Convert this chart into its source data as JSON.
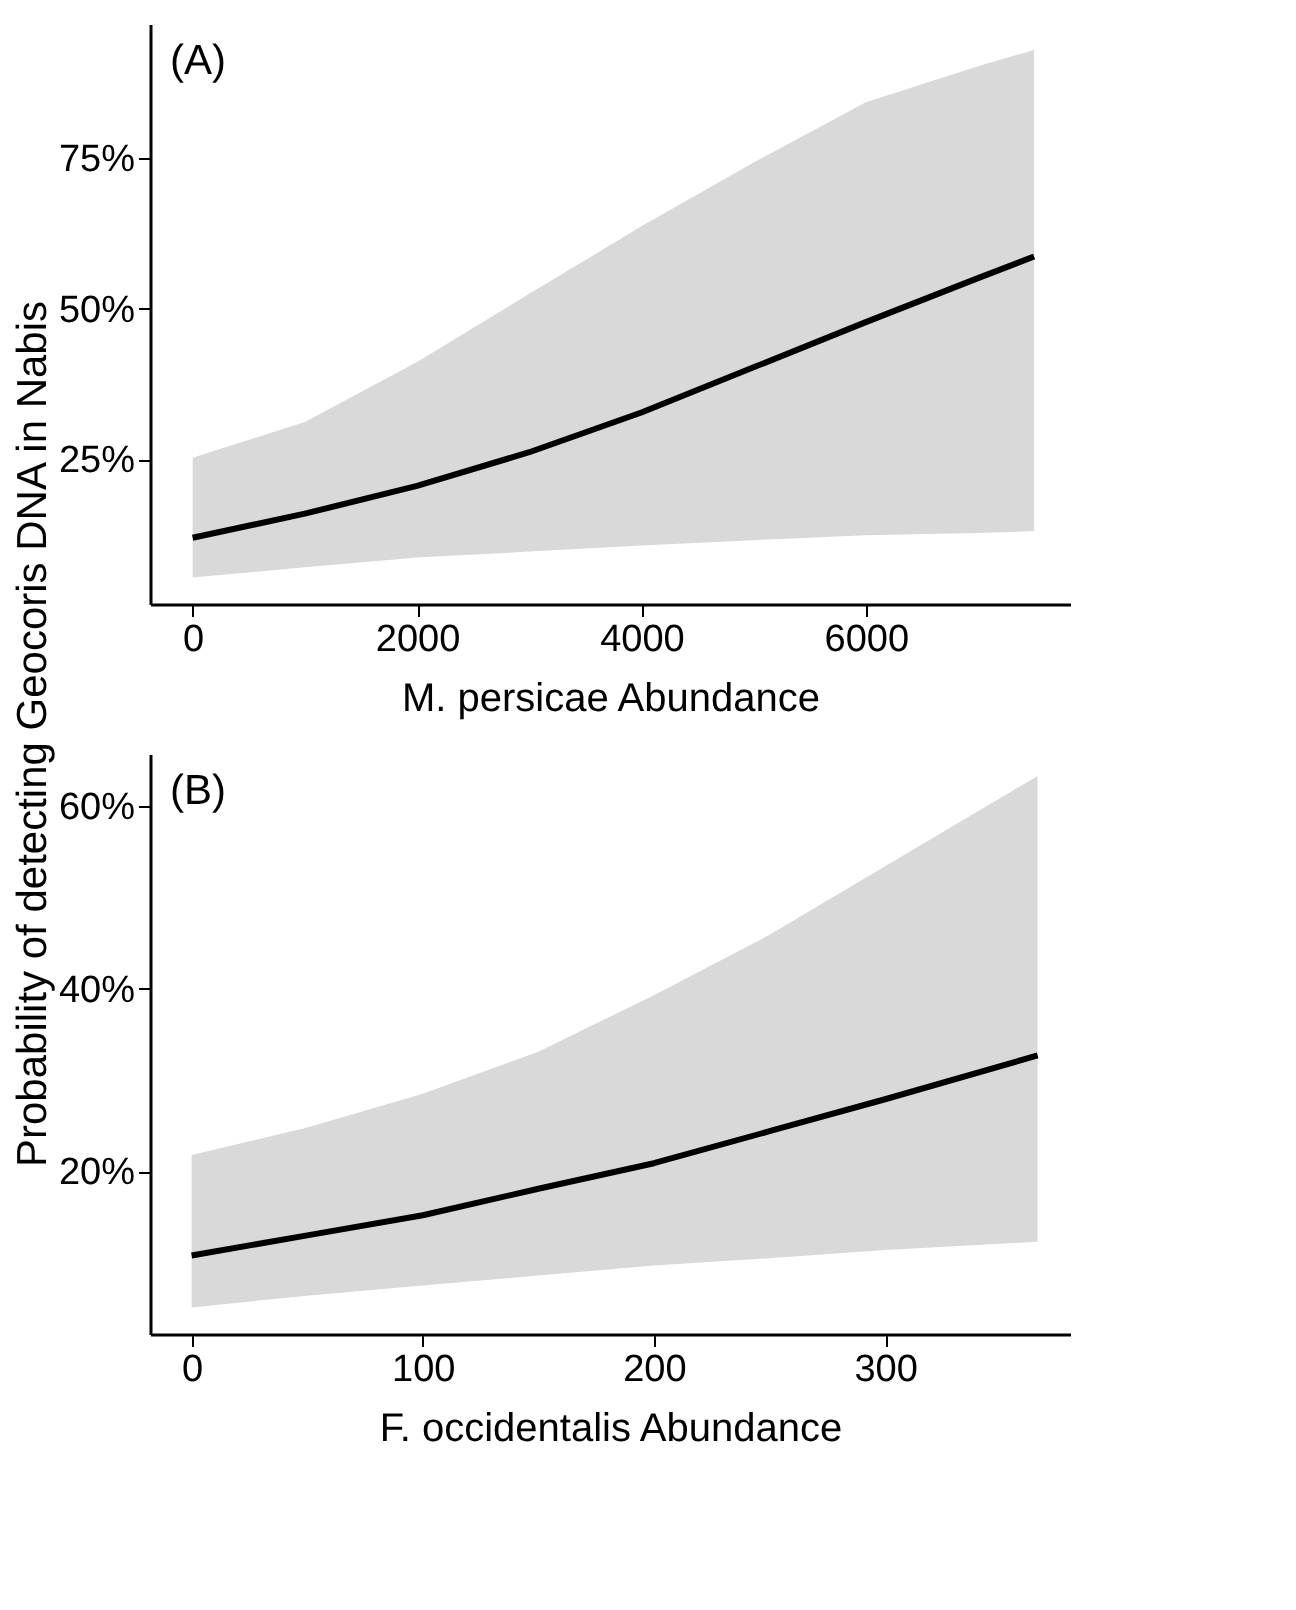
{
  "chart_data": [
    {
      "type": "line",
      "annotations": [
        "(A)"
      ],
      "xlabel": "M. persicae Abundance",
      "ylabel": "Probability of detecting Geocoris DNA in Nabis",
      "x": [
        0,
        1000,
        2000,
        3000,
        4000,
        5000,
        6000,
        7000,
        7500
      ],
      "series": [
        {
          "color": "#000000",
          "values": [
            12.0,
            16.0,
            20.6,
            26.2,
            32.8,
            40.3,
            47.8,
            55.1,
            58.7
          ],
          "lower": [
            5.4,
            7.1,
            8.7,
            9.7,
            10.7,
            11.6,
            12.4,
            12.8,
            13.1
          ],
          "upper": [
            25.3,
            31.2,
            41.2,
            52.5,
            63.7,
            74.3,
            84.3,
            90.3,
            93.0
          ]
        }
      ],
      "xlim": [
        -380,
        7820
      ],
      "xticks": [
        0,
        2000,
        4000,
        6000
      ],
      "ylim": [
        1,
        97.3
      ],
      "yticks": [
        {
          "value": 25,
          "label": "25%"
        },
        {
          "value": 50,
          "label": "50%"
        },
        {
          "value": 75,
          "label": "75%"
        }
      ],
      "grid": false
    },
    {
      "type": "line",
      "annotations": [
        "(B)"
      ],
      "xlabel": "F. occidentalis Abundance",
      "x": [
        0,
        50,
        100,
        150,
        200,
        250,
        300,
        366
      ],
      "series": [
        {
          "color": "#000000",
          "values": [
            10.8,
            13.0,
            15.2,
            18.1,
            20.9,
            24.4,
            27.9,
            32.7
          ],
          "lower": [
            5.1,
            6.4,
            7.5,
            8.6,
            9.7,
            10.5,
            11.4,
            12.3
          ],
          "upper": [
            21.8,
            24.8,
            28.5,
            33.1,
            39.3,
            45.9,
            53.4,
            63.3
          ]
        }
      ],
      "xlim": [
        -18,
        380
      ],
      "xticks": [
        0,
        100,
        200,
        300
      ],
      "ylim": [
        2.2,
        65.7
      ],
      "yticks": [
        {
          "value": 20,
          "label": "20%"
        },
        {
          "value": 40,
          "label": "40%"
        },
        {
          "value": 60,
          "label": "60%"
        }
      ],
      "grid": false
    }
  ]
}
